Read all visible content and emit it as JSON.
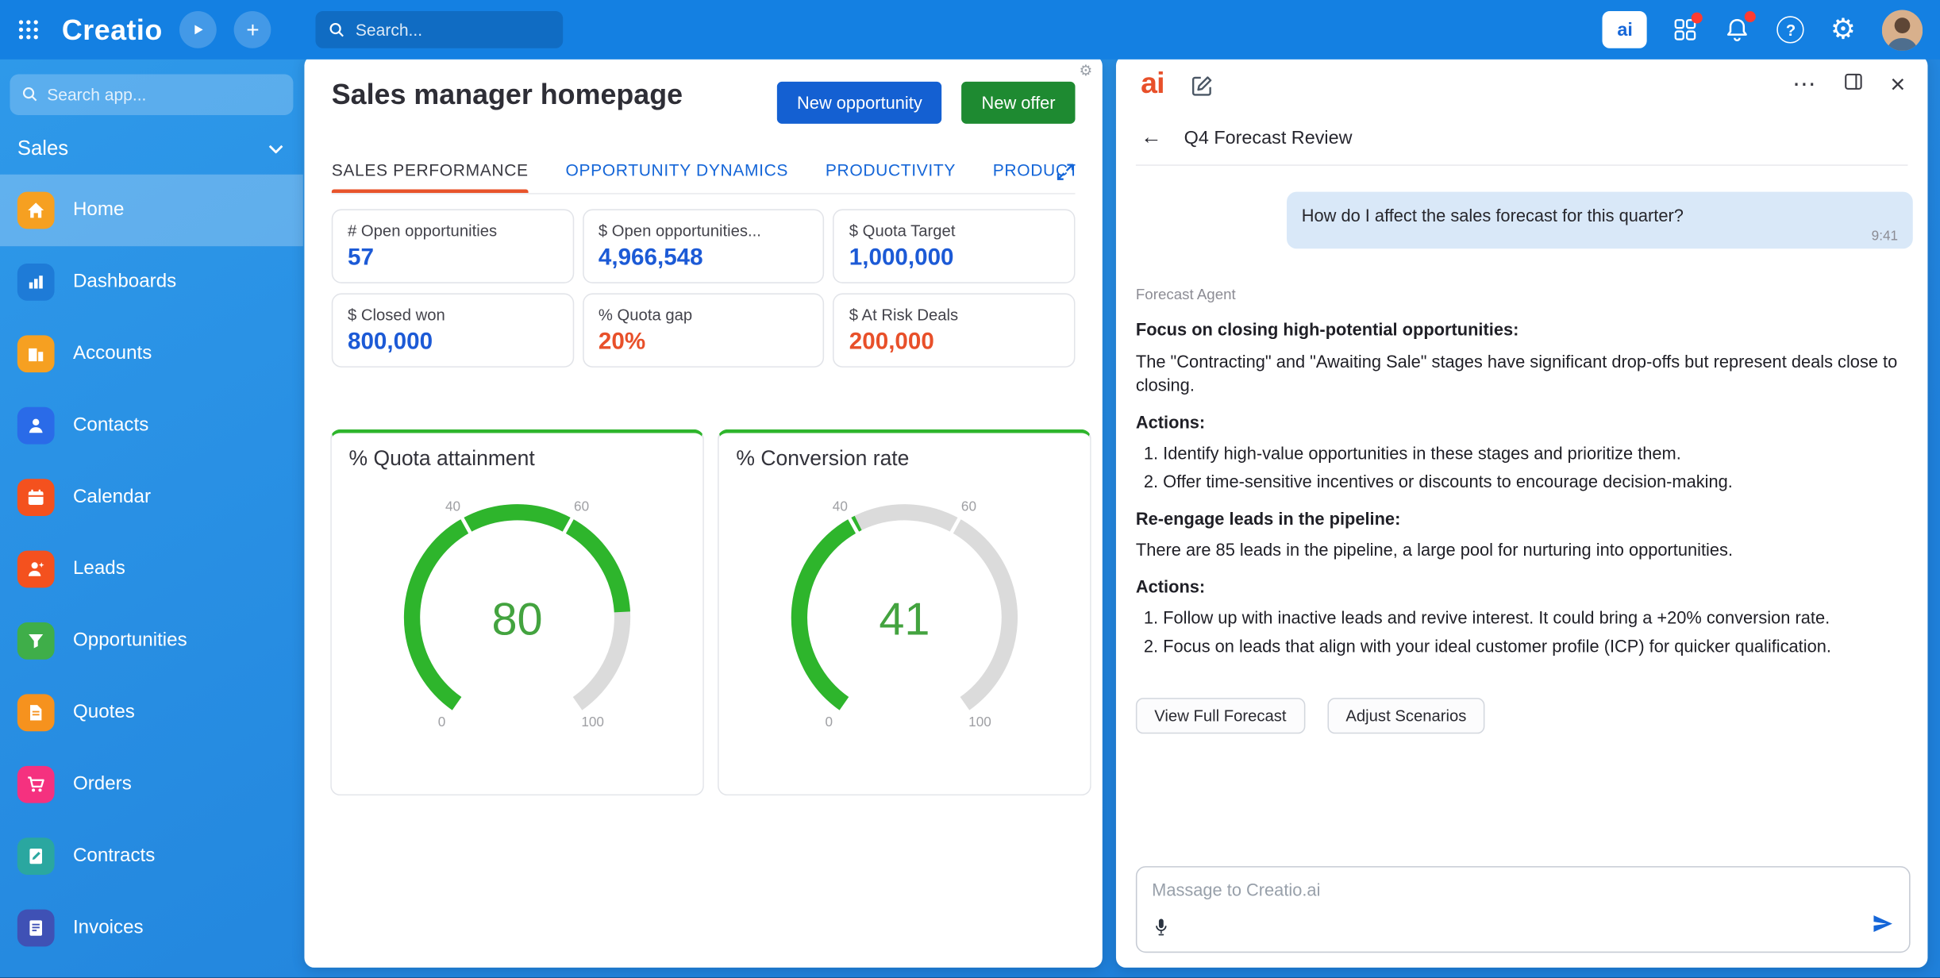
{
  "theme": {
    "topbar_blue": "#1480E2",
    "accent_orange": "#E8542B",
    "primary_blue": "#1566D8",
    "success_green": "#2EB52C",
    "danger_orange": "#E8502A"
  },
  "icons": {
    "plus": "+",
    "help": "?",
    "gear": "⚙",
    "card_settings": "⚙",
    "more": "⋯",
    "close": "×",
    "back": "←"
  },
  "topbar": {
    "logo": "Creatio",
    "search_placeholder": "Search...",
    "ai_button_label": "ai"
  },
  "sidebar": {
    "search_placeholder": "Search app...",
    "workspace": "Sales",
    "items": [
      {
        "label": "Home",
        "color": "#F6A021",
        "selected": true
      },
      {
        "label": "Dashboards",
        "color": "#1E7BD7"
      },
      {
        "label": "Accounts",
        "color": "#F6A021"
      },
      {
        "label": "Contacts",
        "color": "#2A6BE8"
      },
      {
        "label": "Calendar",
        "color": "#F4511E"
      },
      {
        "label": "Leads",
        "color": "#F4511E"
      },
      {
        "label": "Opportunities",
        "color": "#3FAE49"
      },
      {
        "label": "Quotes",
        "color": "#F6921E"
      },
      {
        "label": "Orders",
        "color": "#F5317F"
      },
      {
        "label": "Contracts",
        "color": "#2AA7A0"
      },
      {
        "label": "Invoices",
        "color": "#3F51B5"
      }
    ]
  },
  "main": {
    "title": "Sales manager homepage",
    "buttons": {
      "new_opportunity": "New opportunity",
      "new_offer": "New offer"
    },
    "tabs": [
      {
        "label": "SALES PERFORMANCE",
        "active": true
      },
      {
        "label": "OPPORTUNITY DYNAMICS"
      },
      {
        "label": "PRODUCTIVITY"
      },
      {
        "label": "PRODUCT"
      }
    ],
    "metrics": [
      {
        "label": "# Open opportunities",
        "value": "57",
        "color": "#1C5AD6"
      },
      {
        "label": "$ Open opportunities...",
        "value": "4,966,548",
        "color": "#1C5AD6"
      },
      {
        "label": "$ Quota Target",
        "value": "1,000,000",
        "color": "#1C5AD6"
      },
      {
        "label": "$ Closed won",
        "value": "800,000",
        "color": "#1C5AD6"
      },
      {
        "label": "% Quota gap",
        "value": "20%",
        "color": "#E8502A"
      },
      {
        "label": "$ At Risk Deals",
        "value": "200,000",
        "color": "#E8502A"
      }
    ]
  },
  "chart_data": [
    {
      "type": "gauge",
      "title": "% Quota attainment",
      "value": 80,
      "min": 0,
      "max": 100,
      "ticks": [
        0,
        40,
        60,
        100
      ],
      "color": "#2EB52C",
      "track_color": "#DBDBDB"
    },
    {
      "type": "gauge",
      "title": "% Conversion rate",
      "value": 41,
      "min": 0,
      "max": 100,
      "ticks": [
        0,
        40,
        60,
        100
      ],
      "color": "#2EB52C",
      "track_color": "#DBDBDB"
    }
  ],
  "chat": {
    "logo": "ai",
    "title": "Q4 Forecast Review",
    "user_message": {
      "text": "How do I affect the sales forecast for this quarter?",
      "time": "9:41"
    },
    "agent_name": "Forecast Agent",
    "agent_message": {
      "heading1": "Focus on closing high-potential opportunities:",
      "para1": "The \"Contracting\" and \"Awaiting Sale\" stages have significant drop-offs but represent deals close to closing.",
      "actions1_label": "Actions:",
      "actions1": [
        "Identify high-value opportunities in these stages and prioritize them.",
        "Offer time-sensitive incentives or discounts to encourage decision-making."
      ],
      "heading2": "Re-engage leads in the pipeline:",
      "para2": "There are 85 leads in the pipeline, a large pool for nurturing into opportunities.",
      "actions2_label": "Actions:",
      "actions2": [
        "Follow up with inactive leads and revive interest. It could bring a +20% conversion rate.",
        "Focus on leads that align with your ideal customer profile (ICP) for quicker qualification."
      ]
    },
    "action_buttons": [
      "View Full Forecast",
      "Adjust Scenarios"
    ],
    "input_placeholder": "Massage to Creatio.ai"
  }
}
